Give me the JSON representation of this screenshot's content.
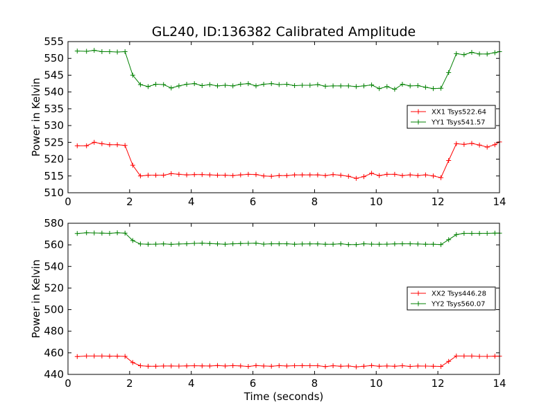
{
  "figure": {
    "title": "GL240, ID:136382 Calibrated Amplitude"
  },
  "chart_data": [
    {
      "type": "line",
      "title": "GL240, ID:136382 Calibrated Amplitude",
      "xlabel": "",
      "ylabel": "Power in Kelvin",
      "xlim": [
        0,
        14
      ],
      "ylim": [
        510,
        555
      ],
      "xticks": [
        "0",
        "2",
        "4",
        "6",
        "8",
        "10",
        "12",
        "14"
      ],
      "yticks": [
        "510",
        "515",
        "520",
        "525",
        "530",
        "535",
        "540",
        "545",
        "550",
        "555"
      ],
      "grid": false,
      "legend_position": "center-right",
      "x": [
        0.3,
        0.6,
        0.85,
        1.1,
        1.35,
        1.6,
        1.85,
        2.1,
        2.35,
        2.6,
        2.85,
        3.1,
        3.35,
        3.6,
        3.85,
        4.1,
        4.35,
        4.6,
        4.85,
        5.1,
        5.35,
        5.6,
        5.85,
        6.1,
        6.35,
        6.6,
        6.85,
        7.1,
        7.35,
        7.6,
        7.85,
        8.1,
        8.35,
        8.6,
        8.85,
        9.1,
        9.35,
        9.6,
        9.85,
        10.1,
        10.35,
        10.6,
        10.85,
        11.1,
        11.35,
        11.6,
        11.85,
        12.1,
        12.35,
        12.6,
        12.85,
        13.1,
        13.35,
        13.6,
        13.85,
        14.0
      ],
      "series": [
        {
          "name": "XX1 Tsys522.64",
          "color": "#ff0000",
          "values": [
            524.0,
            524.0,
            525.0,
            524.6,
            524.3,
            524.3,
            524.1,
            518.2,
            515.0,
            515.2,
            515.2,
            515.2,
            515.7,
            515.5,
            515.3,
            515.4,
            515.4,
            515.3,
            515.2,
            515.2,
            515.1,
            515.3,
            515.5,
            515.4,
            515.0,
            514.9,
            515.1,
            515.1,
            515.3,
            515.3,
            515.3,
            515.3,
            515.1,
            515.4,
            515.2,
            514.9,
            514.3,
            514.8,
            515.8,
            515.1,
            515.5,
            515.5,
            515.1,
            515.3,
            515.1,
            515.3,
            515.0,
            514.5,
            519.6,
            524.6,
            524.4,
            524.7,
            524.2,
            523.6,
            524.3,
            525.1
          ]
        },
        {
          "name": "YY1 Tsys541.57",
          "color": "#008000",
          "values": [
            552.2,
            552.1,
            552.4,
            552.0,
            552.0,
            551.9,
            552.0,
            545.0,
            542.2,
            541.6,
            542.3,
            542.2,
            541.2,
            541.8,
            542.3,
            542.5,
            541.9,
            542.2,
            541.8,
            542.0,
            541.8,
            542.3,
            542.5,
            541.8,
            542.3,
            542.5,
            542.2,
            542.3,
            541.9,
            542.0,
            542.0,
            542.2,
            541.7,
            541.8,
            541.8,
            541.8,
            541.6,
            541.8,
            542.1,
            541.0,
            541.6,
            540.8,
            542.3,
            541.8,
            541.9,
            541.4,
            541.0,
            541.1,
            545.8,
            551.4,
            551.1,
            551.8,
            551.3,
            551.3,
            551.7,
            552.0
          ]
        }
      ]
    },
    {
      "type": "line",
      "title": "",
      "xlabel": "Time (seconds)",
      "ylabel": "Power in Kelvin",
      "xlim": [
        0,
        14
      ],
      "ylim": [
        440,
        580
      ],
      "xticks": [
        "0",
        "2",
        "4",
        "6",
        "8",
        "10",
        "12",
        "14"
      ],
      "yticks": [
        "440",
        "460",
        "480",
        "500",
        "520",
        "540",
        "560",
        "580"
      ],
      "grid": false,
      "legend_position": "center-right",
      "x": [
        0.3,
        0.6,
        0.85,
        1.1,
        1.35,
        1.6,
        1.85,
        2.1,
        2.35,
        2.6,
        2.85,
        3.1,
        3.35,
        3.6,
        3.85,
        4.1,
        4.35,
        4.6,
        4.85,
        5.1,
        5.35,
        5.6,
        5.85,
        6.1,
        6.35,
        6.6,
        6.85,
        7.1,
        7.35,
        7.6,
        7.85,
        8.1,
        8.35,
        8.6,
        8.85,
        9.1,
        9.35,
        9.6,
        9.85,
        10.1,
        10.35,
        10.6,
        10.85,
        11.1,
        11.35,
        11.6,
        11.85,
        12.1,
        12.35,
        12.6,
        12.85,
        13.1,
        13.35,
        13.6,
        13.85,
        14.0
      ],
      "series": [
        {
          "name": "XX2 Tsys446.28",
          "color": "#ff0000",
          "values": [
            456.5,
            457.0,
            457.0,
            457.0,
            456.8,
            456.8,
            456.7,
            451.0,
            448.0,
            447.6,
            447.6,
            447.8,
            447.8,
            447.7,
            447.9,
            448.0,
            447.9,
            447.8,
            448.2,
            447.8,
            448.1,
            447.9,
            447.3,
            448.2,
            447.8,
            447.6,
            448.1,
            447.8,
            448.0,
            448.1,
            448.0,
            448.0,
            447.2,
            448.0,
            447.6,
            447.8,
            447.0,
            447.6,
            448.2,
            447.5,
            447.8,
            447.6,
            448.0,
            447.4,
            447.8,
            447.7,
            447.6,
            447.4,
            452.0,
            457.0,
            457.0,
            457.0,
            456.7,
            456.7,
            456.8,
            456.8
          ]
        },
        {
          "name": "YY2 Tsys560.07",
          "color": "#008000",
          "values": [
            570.5,
            571.2,
            571.0,
            570.8,
            570.7,
            571.2,
            570.9,
            564.0,
            560.8,
            560.6,
            560.7,
            560.9,
            560.5,
            560.8,
            561.0,
            561.4,
            561.5,
            561.2,
            560.9,
            560.6,
            561.0,
            561.2,
            561.4,
            561.5,
            560.7,
            561.0,
            561.0,
            561.0,
            560.6,
            560.8,
            560.9,
            560.9,
            560.6,
            560.6,
            561.0,
            560.2,
            560.2,
            561.0,
            560.7,
            560.6,
            560.7,
            560.9,
            561.0,
            561.0,
            560.8,
            560.6,
            560.6,
            560.2,
            564.8,
            569.5,
            570.7,
            570.6,
            570.6,
            570.7,
            570.8,
            570.8
          ]
        }
      ]
    }
  ]
}
